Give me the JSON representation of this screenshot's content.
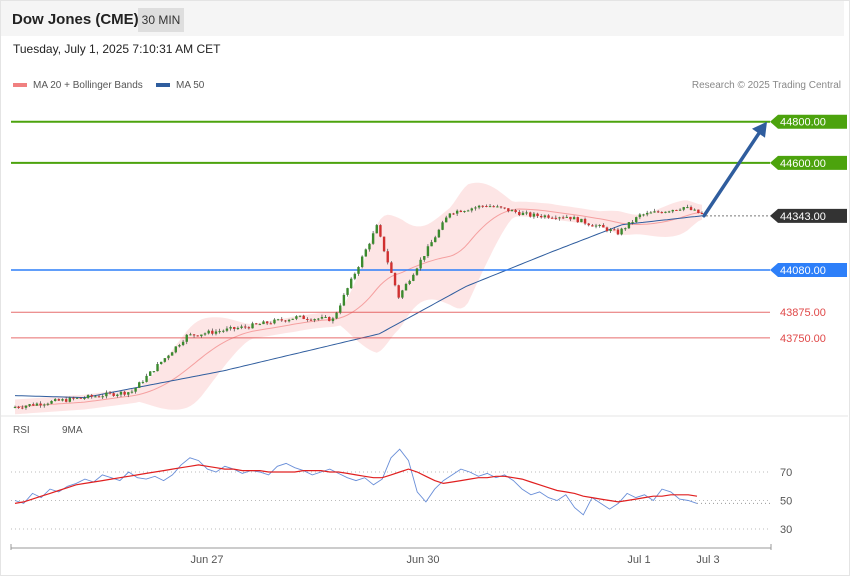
{
  "header": {
    "title": "Dow Jones (CME)",
    "timeframe": "30 MIN"
  },
  "datetime": "Tuesday, July 1, 2025 7:10:31 AM CET",
  "credit": "Research © 2025 Trading Central",
  "legend": {
    "ma20": {
      "label": "MA 20 + Bollinger Bands",
      "color": "#f08080"
    },
    "ma50": {
      "label": "MA 50",
      "color": "#2f5d9e"
    }
  },
  "rsi_legend": {
    "rsi": {
      "label": "RSI",
      "color": "#6a8fd8"
    },
    "ma": {
      "label": "9MA",
      "color": "#e02020"
    }
  },
  "chart_data": [
    {
      "type": "line",
      "x_ticks": [
        "Jun 27",
        "Jun 30",
        "Jul 1",
        "Jul 3"
      ],
      "y_range": [
        43400,
        44920
      ],
      "levels": [
        {
          "label": "44800.00",
          "value": 44800,
          "color": "#4ca30d",
          "kind": "target"
        },
        {
          "label": "44600.00",
          "value": 44600,
          "color": "#4ca30d",
          "kind": "target"
        },
        {
          "label": "44343.00",
          "value": 44343,
          "color": "#333333",
          "kind": "last"
        },
        {
          "label": "44080.00",
          "value": 44080,
          "color": "#2d7ff9",
          "kind": "pivot"
        },
        {
          "label": "43875.00",
          "value": 43875,
          "color": "#e04848",
          "kind": "support"
        },
        {
          "label": "43750.00",
          "value": 43750,
          "color": "#e04848",
          "kind": "support"
        }
      ],
      "projection": {
        "from": 44343,
        "to": 44800
      },
      "candle_segments": [
        {
          "bars": 10,
          "start": 43415,
          "end": 43440
        },
        {
          "bars": 22,
          "start": 43440,
          "end": 43490
        },
        {
          "bars": 15,
          "start": 43490,
          "end": 43760
        },
        {
          "bars": 15,
          "start": 43760,
          "end": 43800
        },
        {
          "bars": 15,
          "start": 43800,
          "end": 43850
        },
        {
          "bars": 10,
          "start": 43850,
          "end": 43840
        },
        {
          "bars": 12,
          "start": 43840,
          "end": 44290
        },
        {
          "bars": 6,
          "start": 44290,
          "end": 43950
        },
        {
          "bars": 14,
          "start": 43950,
          "end": 44360
        },
        {
          "bars": 10,
          "start": 44360,
          "end": 44395
        },
        {
          "bars": 12,
          "start": 44395,
          "end": 44345
        },
        {
          "bars": 10,
          "start": 44345,
          "end": 44340
        },
        {
          "bars": 14,
          "start": 44340,
          "end": 44260
        },
        {
          "bars": 6,
          "start": 44260,
          "end": 44345
        },
        {
          "bars": 12,
          "start": 44345,
          "end": 44385
        },
        {
          "bars": 6,
          "start": 44385,
          "end": 44343
        }
      ],
      "ma50_segments": [
        {
          "bars": 20,
          "start": 43470,
          "end": 43460
        },
        {
          "bars": 40,
          "start": 43460,
          "end": 43590
        },
        {
          "bars": 45,
          "start": 43590,
          "end": 43770
        },
        {
          "bars": 25,
          "start": 43770,
          "end": 44000
        },
        {
          "bars": 25,
          "start": 44000,
          "end": 44170
        },
        {
          "bars": 20,
          "start": 44170,
          "end": 44300
        },
        {
          "bars": 24,
          "start": 44300,
          "end": 44345
        }
      ]
    },
    {
      "type": "line",
      "title": "RSI",
      "y_range": [
        30,
        70
      ],
      "y_ticks": [
        30,
        50,
        70
      ],
      "series": [
        {
          "name": "RSI",
          "color": "#6a8fd8",
          "values": [
            50,
            48,
            55,
            52,
            58,
            56,
            60,
            62,
            65,
            63,
            68,
            66,
            64,
            70,
            66,
            65,
            67,
            64,
            68,
            75,
            80,
            78,
            72,
            70,
            74,
            72,
            69,
            71,
            70,
            68,
            74,
            76,
            73,
            71,
            68,
            70,
            72,
            69,
            66,
            64,
            66,
            61,
            65,
            80,
            86,
            78,
            56,
            49,
            58,
            64,
            68,
            72,
            70,
            67,
            69,
            66,
            68,
            64,
            58,
            54,
            56,
            52,
            50,
            54,
            45,
            40,
            52,
            48,
            44,
            48,
            55,
            52,
            54,
            50,
            58,
            56,
            51,
            50,
            48
          ]
        },
        {
          "name": "9MA",
          "color": "#e02020",
          "values": [
            48,
            49,
            51,
            53,
            55,
            57,
            59,
            61,
            62,
            63,
            64,
            65,
            66,
            67,
            68,
            69,
            70,
            71,
            72,
            73,
            74,
            75,
            74,
            73,
            72,
            72,
            71,
            71,
            71,
            70,
            70,
            70,
            70,
            71,
            71,
            71,
            70,
            70,
            69,
            68,
            67,
            66,
            66,
            68,
            70,
            72,
            70,
            67,
            64,
            62,
            63,
            64,
            65,
            66,
            66,
            67,
            67,
            66,
            65,
            63,
            61,
            59,
            57,
            56,
            55,
            53,
            52,
            51,
            50,
            49,
            50,
            51,
            52,
            53,
            53,
            54,
            54,
            54,
            53
          ]
        }
      ]
    }
  ]
}
